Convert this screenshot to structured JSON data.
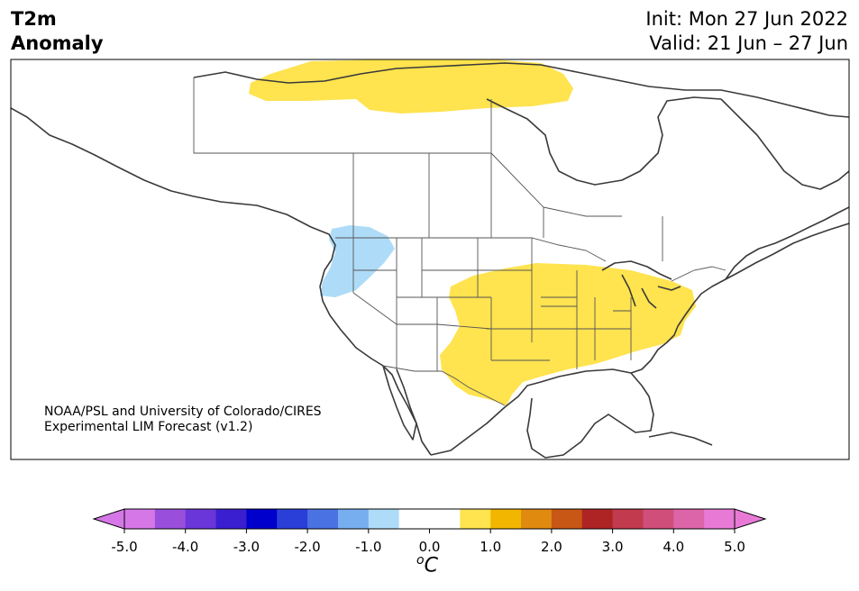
{
  "header": {
    "variable": "T2m",
    "subtitle": "Anomaly",
    "init": "Init: Mon 27 Jun 2022",
    "valid": "Valid: 21 Jun – 27 Jun"
  },
  "credit": {
    "line1": "NOAA/PSL and University of Colorado/CIRES",
    "line2": "Experimental LIM Forecast (v1.2)"
  },
  "colorbar": {
    "unit_base": "C",
    "unit_sup": "o",
    "tick_labels": [
      "-5.0",
      "-4.0",
      "-3.0",
      "-2.0",
      "-1.0",
      "0.0",
      "1.0",
      "2.0",
      "3.0",
      "4.0",
      "5.0"
    ],
    "colors": [
      "#d677e8",
      "#9a4fdc",
      "#6a36da",
      "#3a1fd0",
      "#0000cc",
      "#2a3fd8",
      "#4a72e2",
      "#77aef0",
      "#aedcf8",
      "#ffffff",
      "#ffffff",
      "#ffe34f",
      "#f2b600",
      "#e08a10",
      "#c85614",
      "#ae2424",
      "#c23a4e",
      "#d04e7a",
      "#dc64a8",
      "#e87ad6"
    ],
    "under_color": "#d677e8",
    "over_color": "#e87ad6"
  },
  "anomaly_colors": {
    "warm": "#ffe34f",
    "cool": "#aedcf8"
  }
}
